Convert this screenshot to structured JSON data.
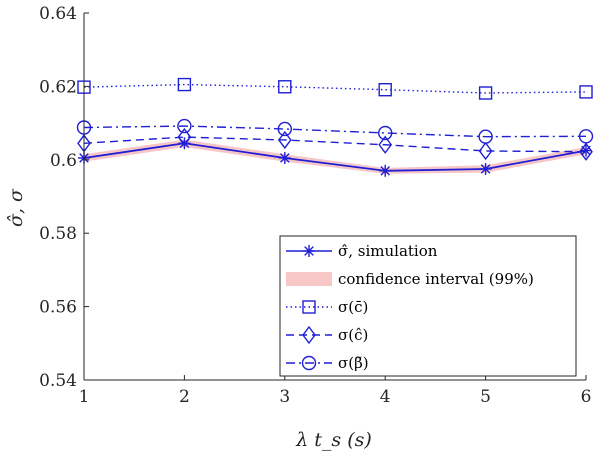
{
  "chart_data": {
    "type": "line",
    "xlabel": "λ t_s (s)",
    "ylabel": "σ̂, σ",
    "xlim": [
      1,
      6
    ],
    "ylim": [
      0.54,
      0.64
    ],
    "x_ticks": [
      1,
      2,
      3,
      4,
      5,
      6
    ],
    "x_tick_labels": [
      "1",
      "2",
      "3",
      "4",
      "5",
      "6"
    ],
    "y_ticks": [
      0.54,
      0.56,
      0.58,
      0.6,
      0.62,
      0.64
    ],
    "y_tick_labels": [
      "0.54",
      "0.56",
      "0.58",
      "0.6",
      "0.62",
      "0.64"
    ],
    "grid": false,
    "legend_position": "bottom-right",
    "x": [
      1,
      2,
      3,
      4,
      5,
      6
    ],
    "confidence_band": {
      "name": "confidence interval (99%)",
      "color": "#f7c6c6",
      "lower": [
        0.5995,
        0.6035,
        0.5995,
        0.5962,
        0.5965,
        0.6015
      ],
      "upper": [
        0.6015,
        0.6055,
        0.6015,
        0.5978,
        0.5985,
        0.6035
      ]
    },
    "series": [
      {
        "name": "σ̂, simulation",
        "marker": "asterisk",
        "line_style": "solid",
        "color": "#1f1fd6",
        "values": [
          0.6005,
          0.6045,
          0.6005,
          0.597,
          0.5975,
          0.6025
        ]
      },
      {
        "name": "σ(c̄)",
        "marker": "square",
        "line_style": "dotted",
        "color": "#1f1fd6",
        "values": [
          0.6198,
          0.6205,
          0.6199,
          0.6191,
          0.6182,
          0.6185
        ]
      },
      {
        "name": "σ(ĉ)",
        "marker": "diamond",
        "line_style": "dashed",
        "color": "#1f1fd6",
        "values": [
          0.6045,
          0.6062,
          0.6054,
          0.6041,
          0.6024,
          0.6022
        ]
      },
      {
        "name": "σ(β̃)",
        "marker": "circle",
        "line_style": "dashdot",
        "color": "#1f1fd6",
        "values": [
          0.6088,
          0.6092,
          0.6084,
          0.6073,
          0.6063,
          0.6064
        ]
      }
    ]
  }
}
